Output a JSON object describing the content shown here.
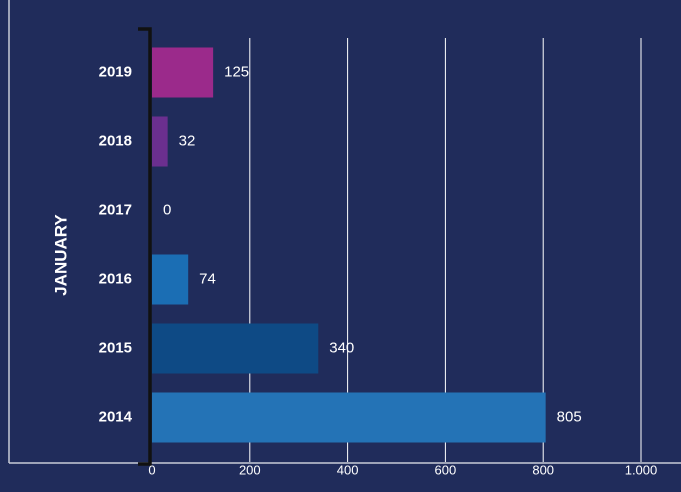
{
  "chart_data": {
    "type": "bar",
    "orientation": "horizontal",
    "y_label": "JANUARY",
    "categories": [
      "2019",
      "2018",
      "2017",
      "2016",
      "2015",
      "2014"
    ],
    "values": [
      125,
      32,
      0,
      74,
      340,
      805
    ],
    "colors": [
      "#9b2a8b",
      "#6b2f8f",
      "#1b6eb4",
      "#1b6eb4",
      "#0e4a85",
      "#2473b6"
    ],
    "xlim": [
      0,
      1000
    ],
    "xticks": [
      0,
      200,
      400,
      600,
      800,
      {
        "value": 1000,
        "label": "1.000"
      }
    ],
    "grid": true
  }
}
